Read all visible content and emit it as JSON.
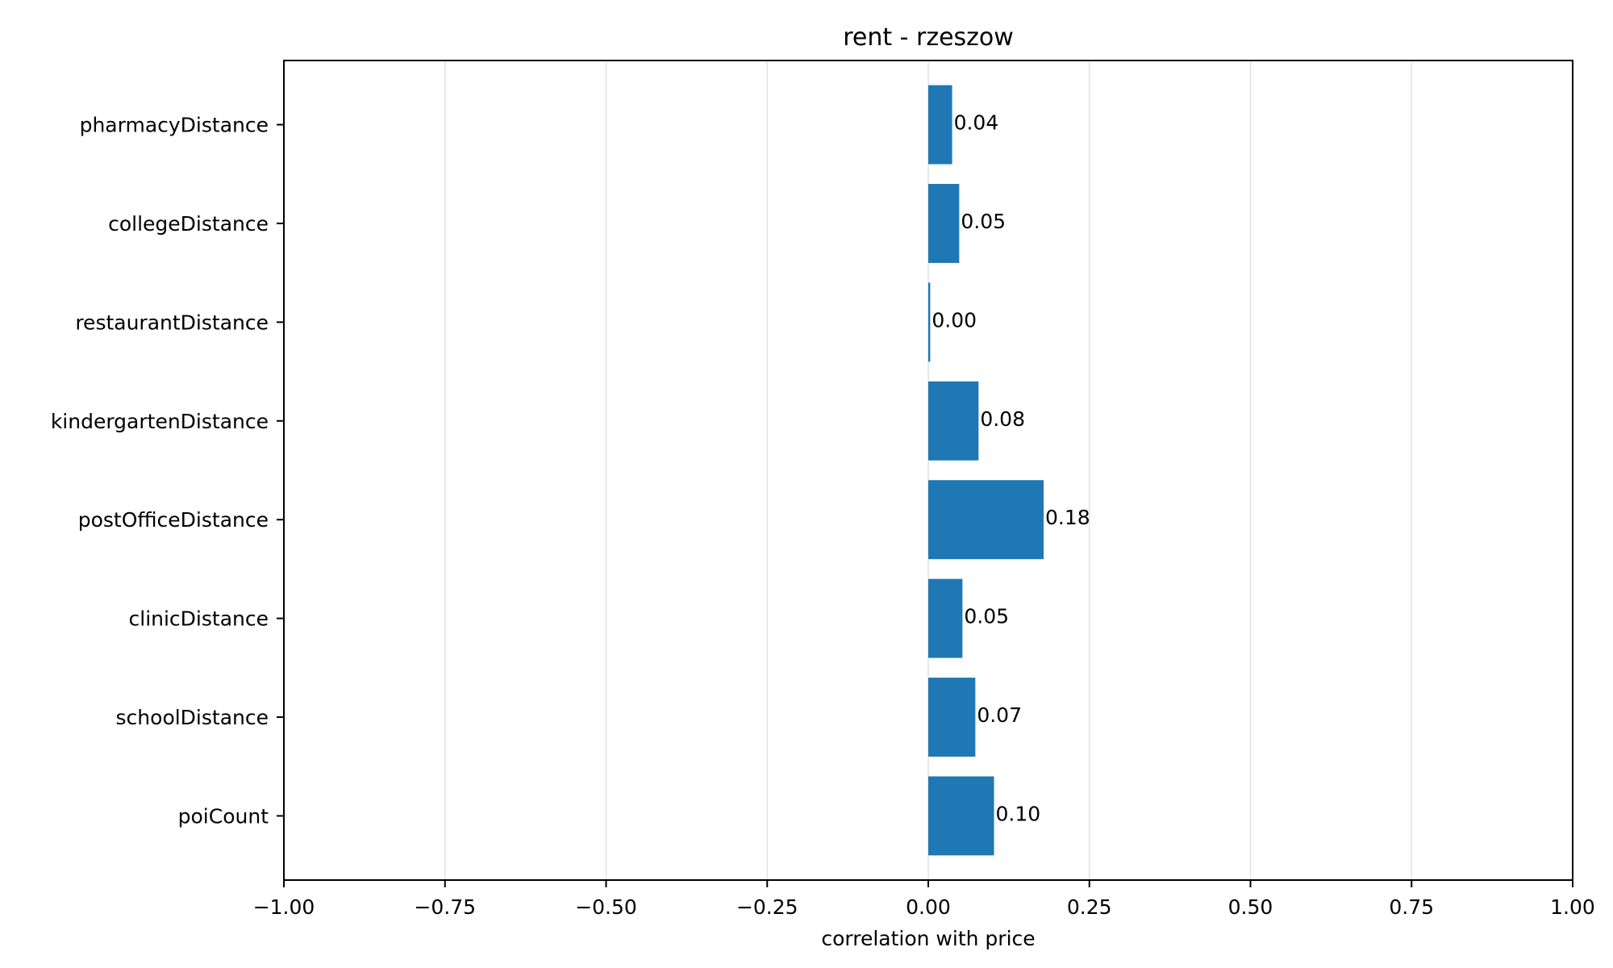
{
  "chart_data": {
    "type": "bar",
    "orientation": "horizontal",
    "title": "rent - rzeszow",
    "xlabel": "correlation with price",
    "ylabel": "",
    "xlim": [
      -1.0,
      1.0
    ],
    "xticks": [
      -1.0,
      -0.75,
      -0.5,
      -0.25,
      0.0,
      0.25,
      0.5,
      0.75,
      1.0
    ],
    "xtick_labels": [
      "−1.00",
      "−0.75",
      "−0.50",
      "−0.25",
      "0.00",
      "0.25",
      "0.50",
      "0.75",
      "1.00"
    ],
    "grid": "vertical",
    "bar_color": "#1f77b4",
    "categories": [
      "pharmacyDistance",
      "collegeDistance",
      "restaurantDistance",
      "kindergartenDistance",
      "postOfficeDistance",
      "clinicDistance",
      "schoolDistance",
      "poiCount"
    ],
    "values": [
      0.037,
      0.048,
      0.003,
      0.078,
      0.179,
      0.053,
      0.073,
      0.102
    ],
    "value_labels": [
      "0.04",
      "0.05",
      "0.00",
      "0.08",
      "0.18",
      "0.05",
      "0.07",
      "0.10"
    ]
  }
}
